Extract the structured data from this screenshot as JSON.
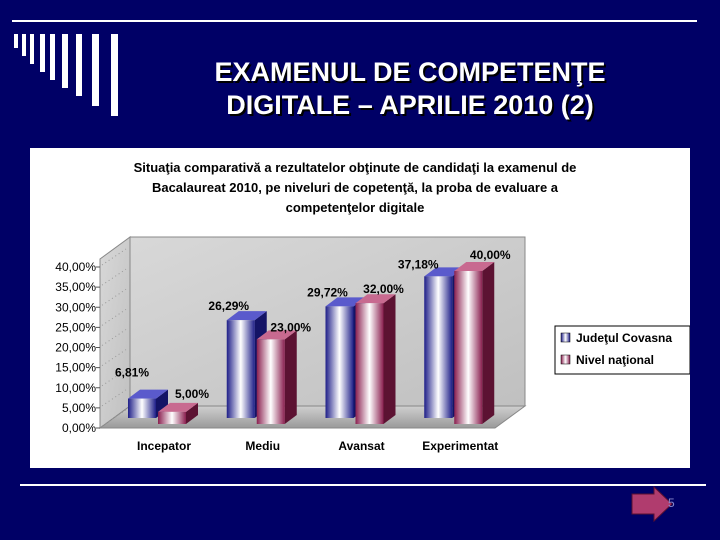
{
  "slide": {
    "title_line1": "EXAMENUL DE COMPETENŢE",
    "title_line2": "DIGITALE – APRILIE 2010 (2)",
    "page_number": "5"
  },
  "colors": {
    "background": "#000066",
    "series_judet": "#3a3ab8",
    "series_national": "#b03c6e"
  },
  "chart_data": {
    "type": "bar",
    "title_lines": [
      "Situaţia comparativă a rezultatelor obţinute de candidaţi la examenul de",
      "Bacalaureat 2010, pe niveluri de copetenţă, la proba de evaluare a",
      "competenţelor digitale"
    ],
    "categories": [
      "Incepator",
      "Mediu",
      "Avansat",
      "Experimentat"
    ],
    "series": [
      {
        "name": "Judeţul Covasna",
        "values": [
          6.81,
          26.29,
          29.72,
          37.18
        ]
      },
      {
        "name": "Nivel naţional",
        "values": [
          5.0,
          23.0,
          32.0,
          40.0
        ]
      }
    ],
    "value_labels": [
      [
        "6,81%",
        "26,29%",
        "29,72%",
        "37,18%"
      ],
      [
        "5,00%",
        "23,00%",
        "32,00%",
        "40,00%"
      ]
    ],
    "ytick_labels": [
      "0,00%",
      "5,00%",
      "10,00%",
      "15,00%",
      "20,00%",
      "25,00%",
      "30,00%",
      "35,00%",
      "40,00%"
    ],
    "ylim": [
      0,
      40
    ],
    "legend_position": "right",
    "grid": false,
    "style": "3d"
  }
}
